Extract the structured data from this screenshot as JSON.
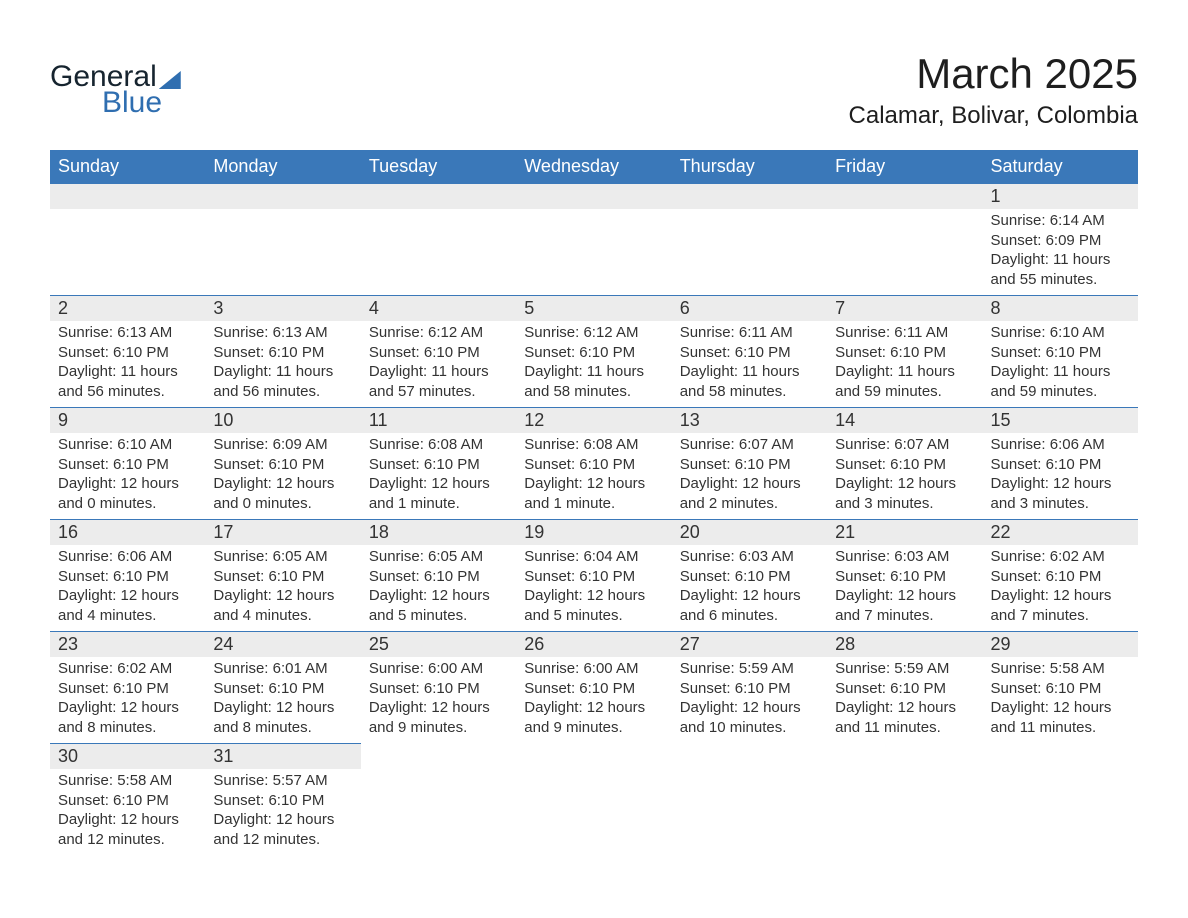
{
  "logo": {
    "general": "General",
    "blue": "Blue"
  },
  "header": {
    "month_title": "March 2025",
    "location": "Calamar, Bolivar, Colombia"
  },
  "calendar": {
    "day_headers": [
      "Sunday",
      "Monday",
      "Tuesday",
      "Wednesday",
      "Thursday",
      "Friday",
      "Saturday"
    ],
    "header_bg": "#3a78b9",
    "header_fg": "#ffffff",
    "daynum_bg": "#ececec",
    "rule_color": "#3a78b9",
    "text_color": "#333333",
    "weeks": [
      [
        null,
        null,
        null,
        null,
        null,
        null,
        {
          "day": "1",
          "sunrise": "Sunrise: 6:14 AM",
          "sunset": "Sunset: 6:09 PM",
          "daylight1": "Daylight: 11 hours",
          "daylight2": "and 55 minutes."
        }
      ],
      [
        {
          "day": "2",
          "sunrise": "Sunrise: 6:13 AM",
          "sunset": "Sunset: 6:10 PM",
          "daylight1": "Daylight: 11 hours",
          "daylight2": "and 56 minutes."
        },
        {
          "day": "3",
          "sunrise": "Sunrise: 6:13 AM",
          "sunset": "Sunset: 6:10 PM",
          "daylight1": "Daylight: 11 hours",
          "daylight2": "and 56 minutes."
        },
        {
          "day": "4",
          "sunrise": "Sunrise: 6:12 AM",
          "sunset": "Sunset: 6:10 PM",
          "daylight1": "Daylight: 11 hours",
          "daylight2": "and 57 minutes."
        },
        {
          "day": "5",
          "sunrise": "Sunrise: 6:12 AM",
          "sunset": "Sunset: 6:10 PM",
          "daylight1": "Daylight: 11 hours",
          "daylight2": "and 58 minutes."
        },
        {
          "day": "6",
          "sunrise": "Sunrise: 6:11 AM",
          "sunset": "Sunset: 6:10 PM",
          "daylight1": "Daylight: 11 hours",
          "daylight2": "and 58 minutes."
        },
        {
          "day": "7",
          "sunrise": "Sunrise: 6:11 AM",
          "sunset": "Sunset: 6:10 PM",
          "daylight1": "Daylight: 11 hours",
          "daylight2": "and 59 minutes."
        },
        {
          "day": "8",
          "sunrise": "Sunrise: 6:10 AM",
          "sunset": "Sunset: 6:10 PM",
          "daylight1": "Daylight: 11 hours",
          "daylight2": "and 59 minutes."
        }
      ],
      [
        {
          "day": "9",
          "sunrise": "Sunrise: 6:10 AM",
          "sunset": "Sunset: 6:10 PM",
          "daylight1": "Daylight: 12 hours",
          "daylight2": "and 0 minutes."
        },
        {
          "day": "10",
          "sunrise": "Sunrise: 6:09 AM",
          "sunset": "Sunset: 6:10 PM",
          "daylight1": "Daylight: 12 hours",
          "daylight2": "and 0 minutes."
        },
        {
          "day": "11",
          "sunrise": "Sunrise: 6:08 AM",
          "sunset": "Sunset: 6:10 PM",
          "daylight1": "Daylight: 12 hours",
          "daylight2": "and 1 minute."
        },
        {
          "day": "12",
          "sunrise": "Sunrise: 6:08 AM",
          "sunset": "Sunset: 6:10 PM",
          "daylight1": "Daylight: 12 hours",
          "daylight2": "and 1 minute."
        },
        {
          "day": "13",
          "sunrise": "Sunrise: 6:07 AM",
          "sunset": "Sunset: 6:10 PM",
          "daylight1": "Daylight: 12 hours",
          "daylight2": "and 2 minutes."
        },
        {
          "day": "14",
          "sunrise": "Sunrise: 6:07 AM",
          "sunset": "Sunset: 6:10 PM",
          "daylight1": "Daylight: 12 hours",
          "daylight2": "and 3 minutes."
        },
        {
          "day": "15",
          "sunrise": "Sunrise: 6:06 AM",
          "sunset": "Sunset: 6:10 PM",
          "daylight1": "Daylight: 12 hours",
          "daylight2": "and 3 minutes."
        }
      ],
      [
        {
          "day": "16",
          "sunrise": "Sunrise: 6:06 AM",
          "sunset": "Sunset: 6:10 PM",
          "daylight1": "Daylight: 12 hours",
          "daylight2": "and 4 minutes."
        },
        {
          "day": "17",
          "sunrise": "Sunrise: 6:05 AM",
          "sunset": "Sunset: 6:10 PM",
          "daylight1": "Daylight: 12 hours",
          "daylight2": "and 4 minutes."
        },
        {
          "day": "18",
          "sunrise": "Sunrise: 6:05 AM",
          "sunset": "Sunset: 6:10 PM",
          "daylight1": "Daylight: 12 hours",
          "daylight2": "and 5 minutes."
        },
        {
          "day": "19",
          "sunrise": "Sunrise: 6:04 AM",
          "sunset": "Sunset: 6:10 PM",
          "daylight1": "Daylight: 12 hours",
          "daylight2": "and 5 minutes."
        },
        {
          "day": "20",
          "sunrise": "Sunrise: 6:03 AM",
          "sunset": "Sunset: 6:10 PM",
          "daylight1": "Daylight: 12 hours",
          "daylight2": "and 6 minutes."
        },
        {
          "day": "21",
          "sunrise": "Sunrise: 6:03 AM",
          "sunset": "Sunset: 6:10 PM",
          "daylight1": "Daylight: 12 hours",
          "daylight2": "and 7 minutes."
        },
        {
          "day": "22",
          "sunrise": "Sunrise: 6:02 AM",
          "sunset": "Sunset: 6:10 PM",
          "daylight1": "Daylight: 12 hours",
          "daylight2": "and 7 minutes."
        }
      ],
      [
        {
          "day": "23",
          "sunrise": "Sunrise: 6:02 AM",
          "sunset": "Sunset: 6:10 PM",
          "daylight1": "Daylight: 12 hours",
          "daylight2": "and 8 minutes."
        },
        {
          "day": "24",
          "sunrise": "Sunrise: 6:01 AM",
          "sunset": "Sunset: 6:10 PM",
          "daylight1": "Daylight: 12 hours",
          "daylight2": "and 8 minutes."
        },
        {
          "day": "25",
          "sunrise": "Sunrise: 6:00 AM",
          "sunset": "Sunset: 6:10 PM",
          "daylight1": "Daylight: 12 hours",
          "daylight2": "and 9 minutes."
        },
        {
          "day": "26",
          "sunrise": "Sunrise: 6:00 AM",
          "sunset": "Sunset: 6:10 PM",
          "daylight1": "Daylight: 12 hours",
          "daylight2": "and 9 minutes."
        },
        {
          "day": "27",
          "sunrise": "Sunrise: 5:59 AM",
          "sunset": "Sunset: 6:10 PM",
          "daylight1": "Daylight: 12 hours",
          "daylight2": "and 10 minutes."
        },
        {
          "day": "28",
          "sunrise": "Sunrise: 5:59 AM",
          "sunset": "Sunset: 6:10 PM",
          "daylight1": "Daylight: 12 hours",
          "daylight2": "and 11 minutes."
        },
        {
          "day": "29",
          "sunrise": "Sunrise: 5:58 AM",
          "sunset": "Sunset: 6:10 PM",
          "daylight1": "Daylight: 12 hours",
          "daylight2": "and 11 minutes."
        }
      ],
      [
        {
          "day": "30",
          "sunrise": "Sunrise: 5:58 AM",
          "sunset": "Sunset: 6:10 PM",
          "daylight1": "Daylight: 12 hours",
          "daylight2": "and 12 minutes."
        },
        {
          "day": "31",
          "sunrise": "Sunrise: 5:57 AM",
          "sunset": "Sunset: 6:10 PM",
          "daylight1": "Daylight: 12 hours",
          "daylight2": "and 12 minutes."
        },
        null,
        null,
        null,
        null,
        null
      ]
    ]
  }
}
